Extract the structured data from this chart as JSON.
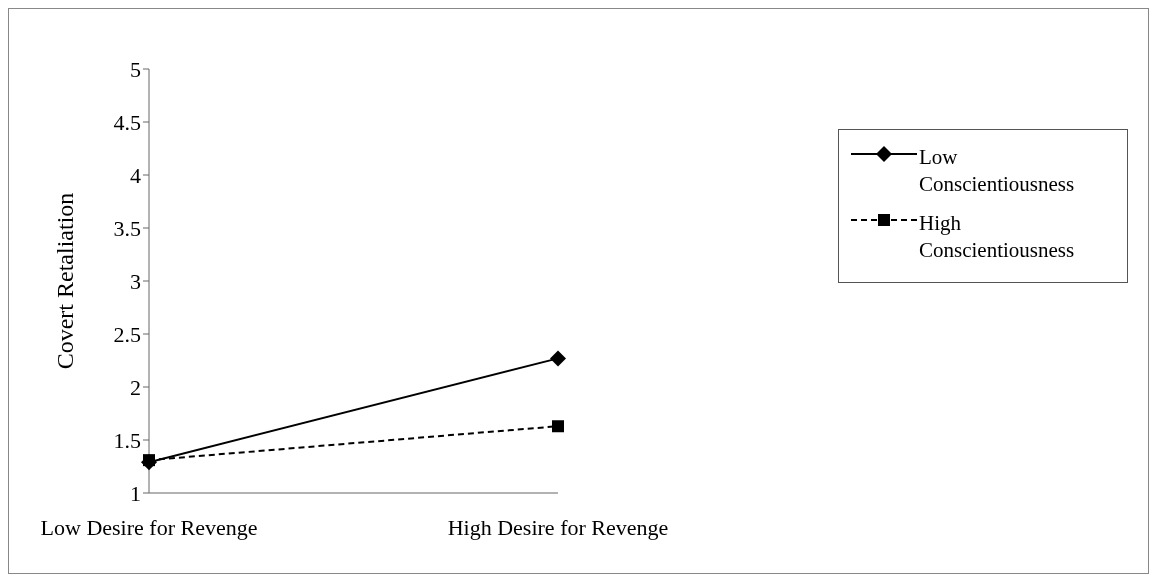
{
  "chart_data": {
    "type": "line",
    "ylabel": "Covert  Retaliation",
    "categories": [
      "Low Desire for Revenge",
      "High Desire for Revenge"
    ],
    "series": [
      {
        "name": "Low Conscientiousness",
        "color": "#000000",
        "marker": "diamond",
        "line_style": "solid",
        "values": [
          1.29,
          2.27
        ]
      },
      {
        "name": "High Conscientiousness",
        "color": "#000000",
        "marker": "square",
        "line_style": "dashed",
        "values": [
          1.31,
          1.63
        ]
      }
    ],
    "ylim": [
      1,
      5
    ],
    "yticks": [
      1,
      1.5,
      2,
      2.5,
      3,
      3.5,
      4,
      4.5,
      5
    ],
    "grid": false,
    "legend": "right"
  }
}
